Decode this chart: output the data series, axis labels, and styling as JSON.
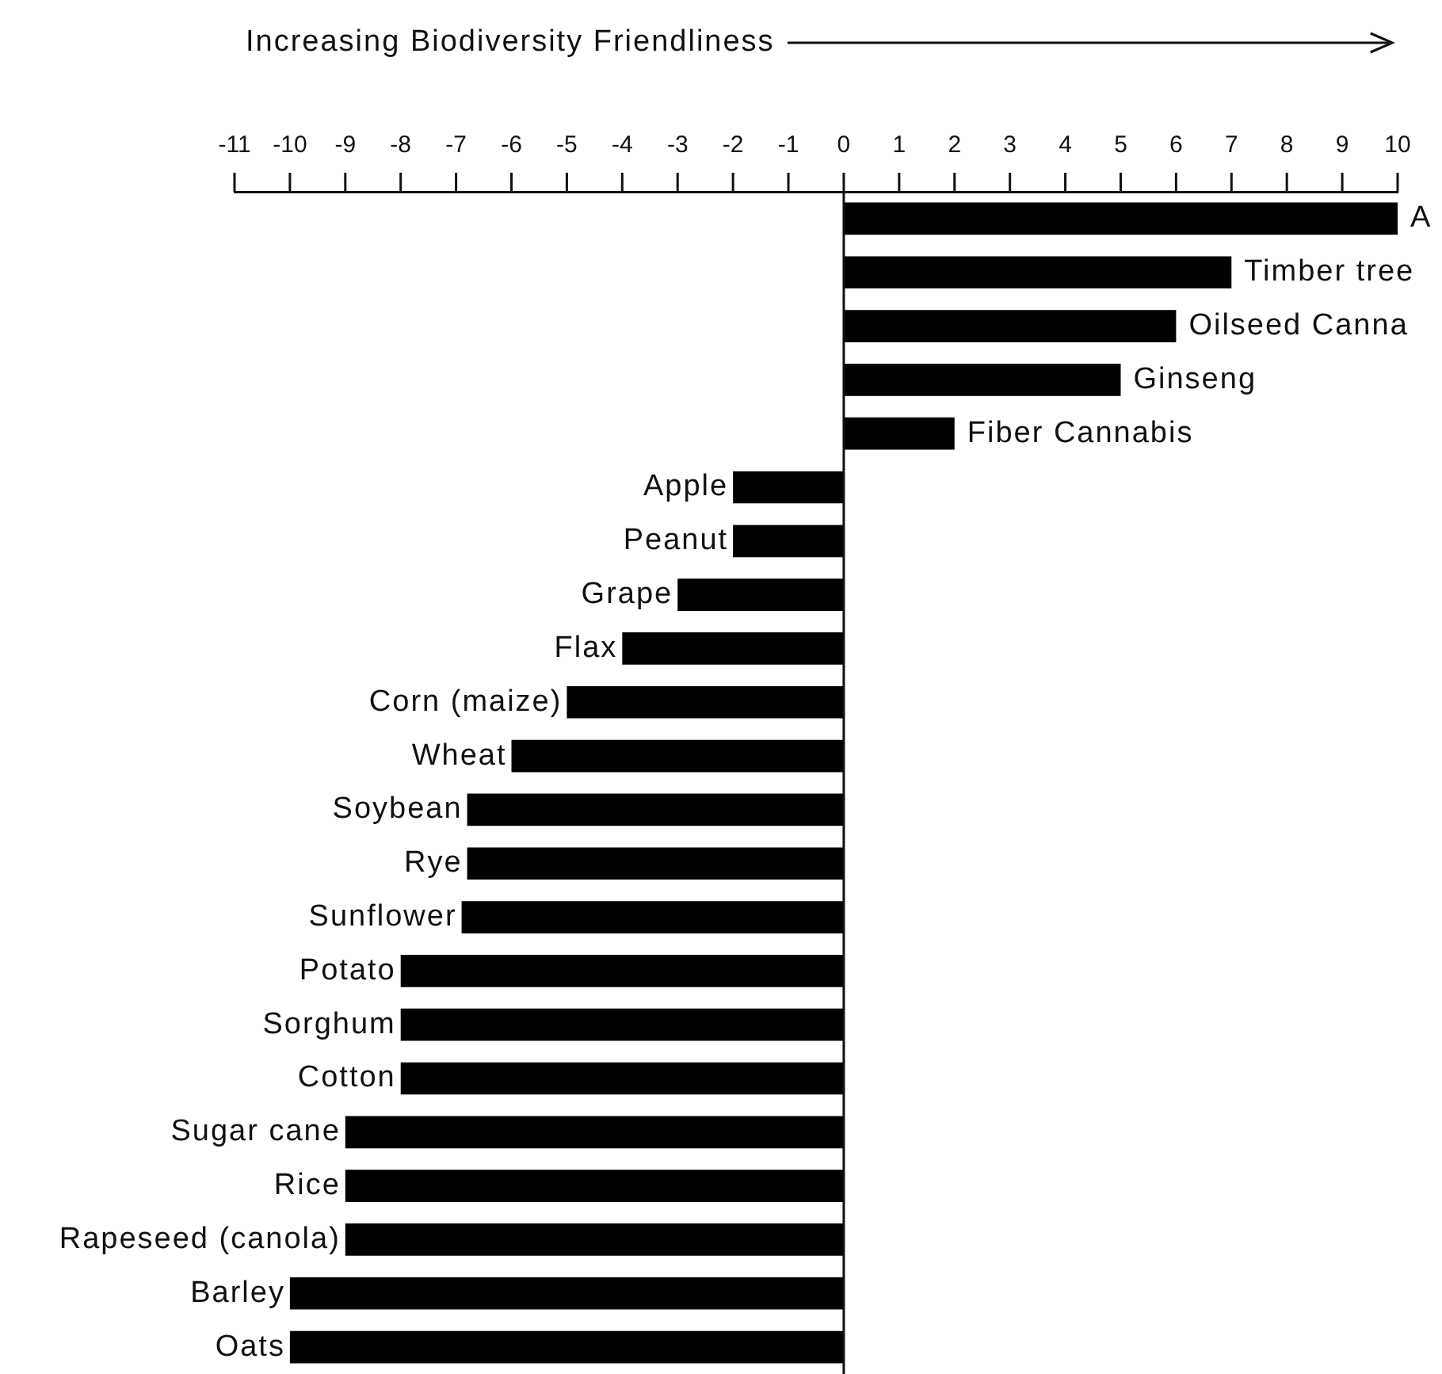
{
  "chart_data": {
    "type": "bar",
    "orientation": "horizontal",
    "xlabel": "Increasing Biodiversity Friendliness",
    "categories": [
      "A",
      "Timber tree",
      "Oilseed Canna",
      "Ginseng",
      "Fiber Cannabis",
      "Apple",
      "Peanut",
      "Grape",
      "Flax",
      "Corn (maize)",
      "Wheat",
      "Soybean",
      "Rye",
      "Sunflower",
      "Potato",
      "Sorghum",
      "Cotton",
      "Sugar cane",
      "Rice",
      "Rapeseed (canola)",
      "Barley",
      "Oats"
    ],
    "values": [
      10,
      7,
      6,
      5,
      2,
      -2,
      -2,
      -3,
      -4,
      -5,
      -6,
      -6.8,
      -6.8,
      -6.9,
      -8,
      -8,
      -8,
      -9,
      -9,
      -9,
      -10,
      -10
    ],
    "color": "#000000",
    "xlim": [
      -11,
      10
    ],
    "xticks": [
      -11,
      -10,
      -9,
      -8,
      -7,
      -6,
      -5,
      -4,
      -3,
      -2,
      -1,
      0,
      1,
      2,
      3,
      4,
      5,
      6,
      7,
      8,
      9,
      10
    ],
    "ref_lines": [
      {
        "axis": "x",
        "value": 0,
        "color": "#111111"
      }
    ],
    "grid": false,
    "legend": false
  }
}
